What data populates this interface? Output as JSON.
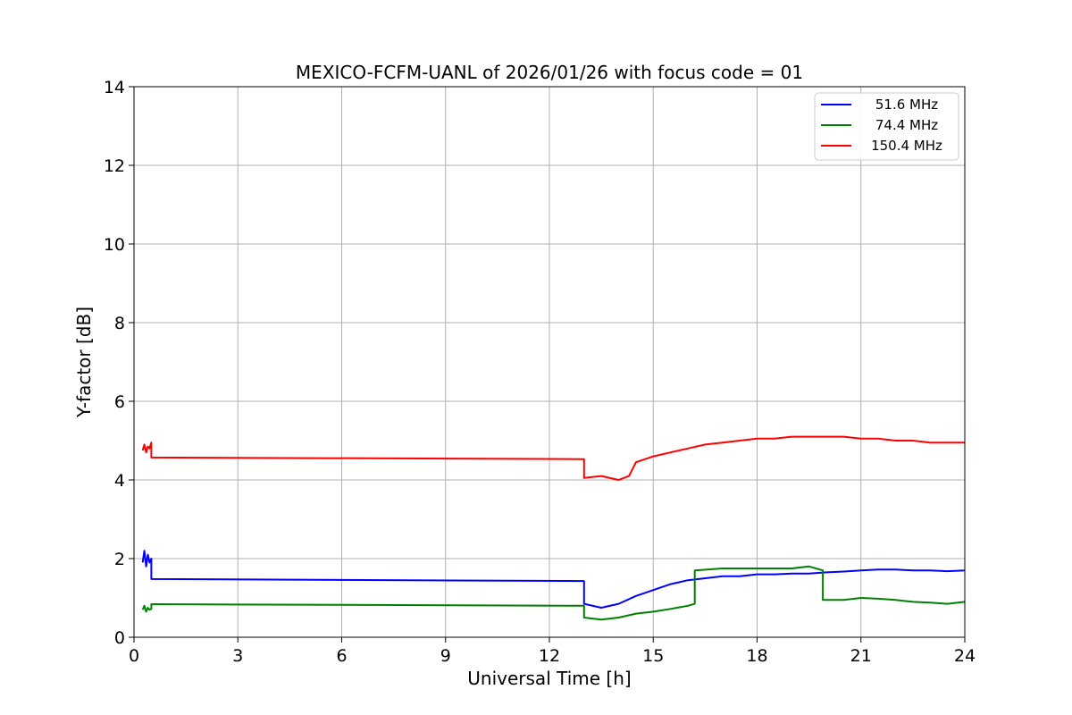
{
  "chart_data": {
    "type": "line",
    "title": "MEXICO-FCFM-UANL of 2026/01/26 with focus code = 01",
    "xlabel": "Universal Time [h]",
    "ylabel": "Y-factor [dB]",
    "xlim": [
      0,
      24
    ],
    "ylim": [
      0,
      14
    ],
    "xticks": [
      0,
      3,
      6,
      9,
      12,
      15,
      18,
      21,
      24
    ],
    "yticks": [
      0,
      2,
      4,
      6,
      8,
      10,
      12,
      14
    ],
    "grid": true,
    "legend_position": "top-right",
    "series": [
      {
        "name": "51.6 MHz",
        "color": "#0000ff",
        "x": [
          0.25,
          0.3,
          0.35,
          0.4,
          0.45,
          0.5,
          0.5,
          13.0,
          13.0,
          13.5,
          14.0,
          14.5,
          15.0,
          15.5,
          16.0,
          16.5,
          17.0,
          17.5,
          18.0,
          18.5,
          19.0,
          19.5,
          20.0,
          20.5,
          21.0,
          21.5,
          22.0,
          22.5,
          23.0,
          23.5,
          24.0
        ],
        "y": [
          1.9,
          2.2,
          1.8,
          2.1,
          1.9,
          2.0,
          1.48,
          1.43,
          0.85,
          0.75,
          0.85,
          1.05,
          1.2,
          1.35,
          1.45,
          1.5,
          1.55,
          1.55,
          1.6,
          1.6,
          1.62,
          1.62,
          1.65,
          1.67,
          1.7,
          1.72,
          1.72,
          1.7,
          1.7,
          1.68,
          1.7
        ]
      },
      {
        "name": "74.4 MHz",
        "color": "#008000",
        "x": [
          0.25,
          0.3,
          0.35,
          0.4,
          0.45,
          0.5,
          0.5,
          13.0,
          13.0,
          13.5,
          14.0,
          14.5,
          15.0,
          15.5,
          16.0,
          16.2,
          16.2,
          17.0,
          18.0,
          19.0,
          19.5,
          19.9,
          19.9,
          20.5,
          21.0,
          21.5,
          22.0,
          22.5,
          23.0,
          23.5,
          24.0
        ],
        "y": [
          0.7,
          0.8,
          0.65,
          0.75,
          0.7,
          0.72,
          0.84,
          0.8,
          0.5,
          0.45,
          0.5,
          0.6,
          0.65,
          0.72,
          0.8,
          0.85,
          1.7,
          1.75,
          1.75,
          1.75,
          1.8,
          1.7,
          0.95,
          0.95,
          1.0,
          0.98,
          0.95,
          0.9,
          0.88,
          0.85,
          0.9
        ]
      },
      {
        "name": "150.4 MHz",
        "color": "#ff0000",
        "x": [
          0.25,
          0.3,
          0.35,
          0.4,
          0.45,
          0.5,
          0.5,
          13.0,
          13.0,
          13.5,
          14.0,
          14.3,
          14.5,
          15.0,
          15.5,
          16.0,
          16.5,
          17.0,
          17.5,
          18.0,
          18.5,
          19.0,
          19.5,
          20.0,
          20.5,
          21.0,
          21.5,
          22.0,
          22.5,
          23.0,
          23.5,
          24.0
        ],
        "y": [
          4.75,
          4.9,
          4.7,
          4.85,
          4.8,
          4.95,
          4.57,
          4.53,
          4.05,
          4.1,
          4.0,
          4.1,
          4.45,
          4.6,
          4.7,
          4.8,
          4.9,
          4.95,
          5.0,
          5.05,
          5.05,
          5.1,
          5.1,
          5.1,
          5.1,
          5.05,
          5.05,
          5.0,
          5.0,
          4.95,
          4.95,
          4.95
        ]
      }
    ]
  }
}
